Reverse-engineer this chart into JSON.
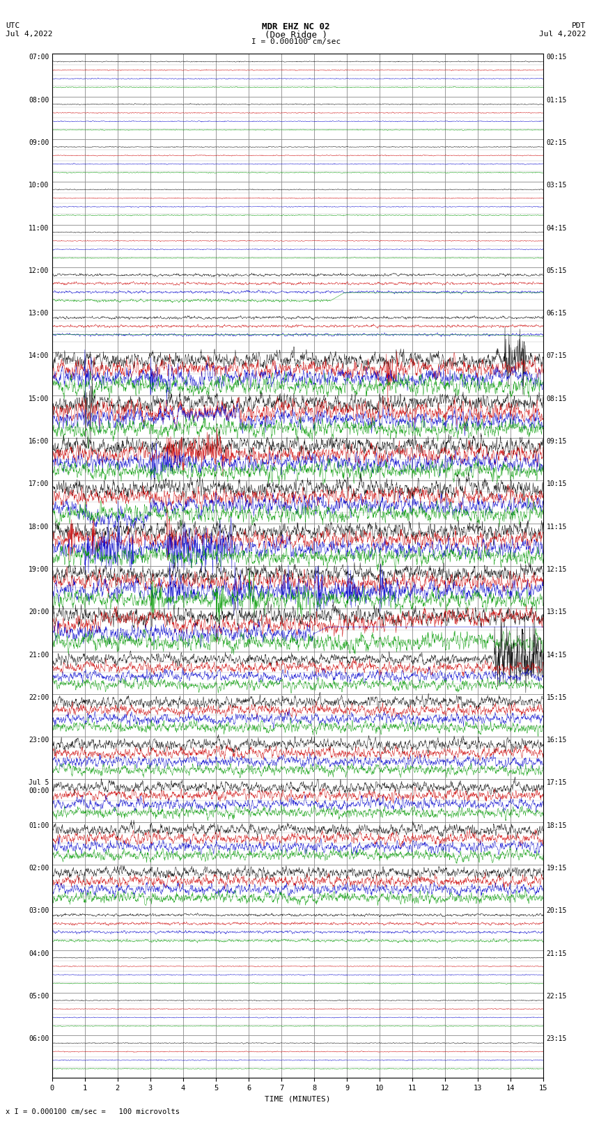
{
  "title_line1": "MDR EHZ NC 02",
  "title_line2": "(Doe Ridge )",
  "scale_label": "I = 0.000100 cm/sec",
  "utc_label": "UTC",
  "utc_date": "Jul 4,2022",
  "pdt_label": "PDT",
  "pdt_date": "Jul 4,2022",
  "xlabel": "TIME (MINUTES)",
  "footer": "x I = 0.000100 cm/sec =   100 microvolts",
  "left_times_utc": [
    "07:00",
    "08:00",
    "09:00",
    "10:00",
    "11:00",
    "12:00",
    "13:00",
    "14:00",
    "15:00",
    "16:00",
    "17:00",
    "18:00",
    "19:00",
    "20:00",
    "21:00",
    "22:00",
    "23:00",
    "Jul 5\n00:00",
    "01:00",
    "02:00",
    "03:00",
    "04:00",
    "05:00",
    "06:00"
  ],
  "right_times_pdt": [
    "00:15",
    "01:15",
    "02:15",
    "03:15",
    "04:15",
    "05:15",
    "06:15",
    "07:15",
    "08:15",
    "09:15",
    "10:15",
    "11:15",
    "12:15",
    "13:15",
    "14:15",
    "15:15",
    "16:15",
    "17:15",
    "18:15",
    "19:15",
    "20:15",
    "21:15",
    "22:15",
    "23:15"
  ],
  "num_rows": 24,
  "x_min": 0,
  "x_max": 15,
  "x_ticks": [
    0,
    1,
    2,
    3,
    4,
    5,
    6,
    7,
    8,
    9,
    10,
    11,
    12,
    13,
    14,
    15
  ],
  "background_color": "#ffffff",
  "grid_color": "#aaaaaa",
  "trace_colors": [
    "black",
    "#cc0000",
    "#0000cc",
    "#009900"
  ],
  "title_fontsize": 9,
  "label_fontsize": 8,
  "tick_fontsize": 7.5
}
